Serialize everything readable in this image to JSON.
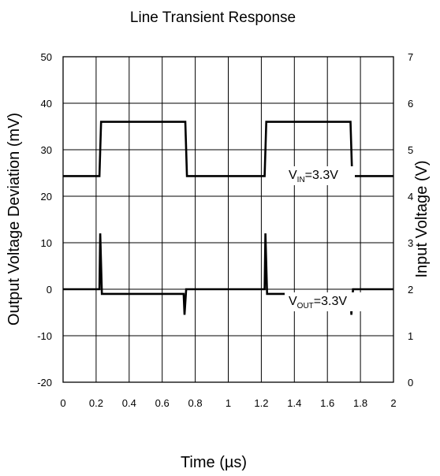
{
  "chart_data": {
    "type": "line",
    "title": "Line Transient Response",
    "xlabel": "Time (µs)",
    "ylabel": "Output Voltage Deviation (mV)",
    "y2label": "Input Voltage (V)",
    "xlim": [
      0,
      2
    ],
    "ylim": [
      -20,
      50
    ],
    "y2lim": [
      1,
      7
    ],
    "grid": true,
    "x_ticks": [
      "0",
      "0.2",
      "0.4",
      "0.6",
      "0.8",
      "1",
      "1.2",
      "1.4",
      "1.6",
      "1.8",
      "2"
    ],
    "y_ticks": [
      "50",
      "40",
      "30",
      "20",
      "10",
      "0",
      "-10",
      "-20"
    ],
    "y2_ticks": [
      "7",
      "6",
      "5",
      "4",
      "3",
      "2",
      "1",
      "0"
    ],
    "series": [
      {
        "name": "VIN",
        "axis": "right",
        "label_main": "V",
        "label_sub": "IN",
        "label_rest": "=3.3V",
        "x": [
          0,
          0.22,
          0.23,
          0.74,
          0.75,
          1.22,
          1.23,
          1.74,
          1.75,
          2.0
        ],
        "y": [
          4.8,
          4.8,
          5.8,
          5.8,
          4.8,
          4.8,
          5.8,
          5.8,
          4.8,
          4.8
        ]
      },
      {
        "name": "VOUT",
        "axis": "left",
        "label_main": "V",
        "label_sub": "OUT",
        "label_rest": "=3.3V",
        "x": [
          0,
          0.22,
          0.225,
          0.235,
          0.73,
          0.735,
          0.745,
          1.22,
          1.225,
          1.235,
          1.74,
          1.745,
          1.755,
          2.0
        ],
        "y": [
          0,
          0,
          12,
          -1,
          -1,
          -5.5,
          0,
          0,
          12,
          -1,
          -1,
          -5.5,
          0,
          0
        ]
      }
    ]
  }
}
